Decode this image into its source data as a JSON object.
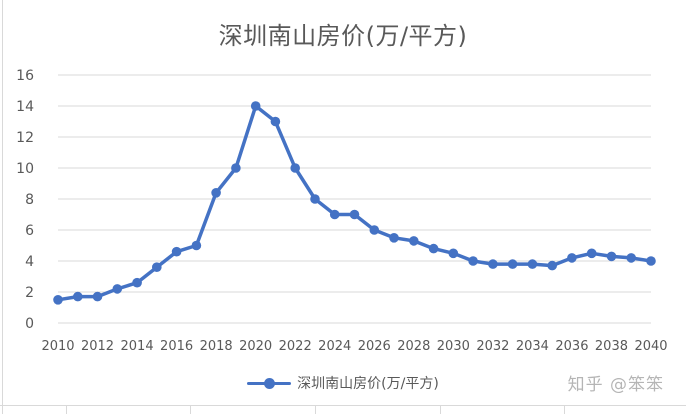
{
  "chart_data": {
    "type": "line",
    "title": "深圳南山房价(万/平方)",
    "xlabel": "",
    "ylabel": "",
    "x_tick_labels": [
      "2010",
      "2012",
      "2014",
      "2016",
      "2018",
      "2020",
      "2022",
      "2024",
      "2026",
      "2028",
      "2030",
      "2032",
      "2034",
      "2036",
      "2038",
      "2040"
    ],
    "y_tick_labels": [
      "0",
      "2",
      "4",
      "6",
      "8",
      "10",
      "12",
      "14",
      "16"
    ],
    "ylim": [
      0,
      16
    ],
    "xlim": [
      2010,
      2040
    ],
    "grid": "horizontal",
    "legend_position": "bottom",
    "series": [
      {
        "name": "深圳南山房价(万/平方)",
        "color": "#4472c4",
        "x": [
          2010,
          2011,
          2012,
          2013,
          2014,
          2015,
          2016,
          2017,
          2018,
          2019,
          2020,
          2021,
          2022,
          2023,
          2024,
          2025,
          2026,
          2027,
          2028,
          2029,
          2030,
          2031,
          2032,
          2033,
          2034,
          2035,
          2036,
          2037,
          2038,
          2039,
          2040
        ],
        "values": [
          1.5,
          1.7,
          1.7,
          2.2,
          2.6,
          3.6,
          4.6,
          5.0,
          8.4,
          10.0,
          14.0,
          13.0,
          10.0,
          8.0,
          7.0,
          7.0,
          6.0,
          5.5,
          5.3,
          4.8,
          4.5,
          4.0,
          3.8,
          3.8,
          3.8,
          3.7,
          4.2,
          4.5,
          4.3,
          4.2,
          4.0
        ]
      }
    ]
  },
  "watermark": "知乎 @笨笨"
}
